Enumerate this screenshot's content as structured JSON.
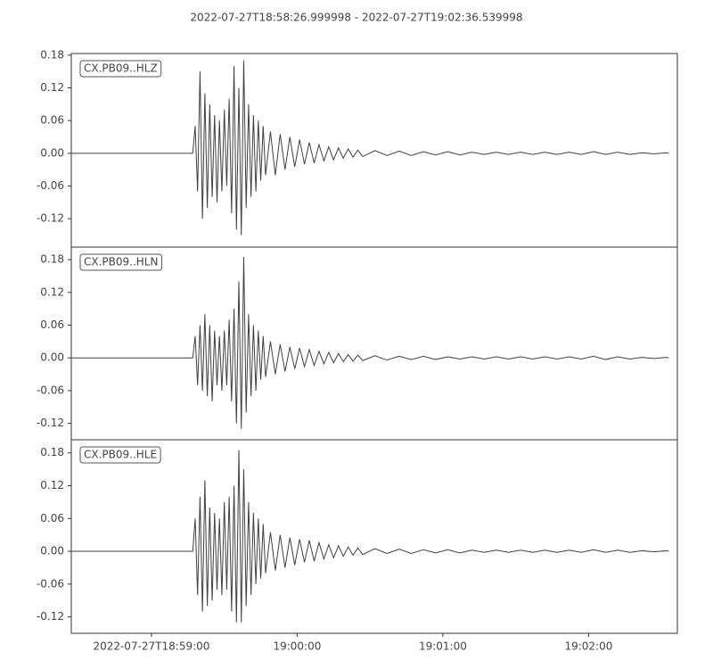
{
  "chart_data": {
    "type": "line",
    "title": "2022-07-27T18:58:26.999998  -  2022-07-27T19:02:36.539998",
    "x": [
      67107,
      67157,
      67158,
      67159,
      67160,
      67161,
      67162,
      67163,
      67164,
      67165,
      67166,
      67167,
      67168,
      67169,
      67170,
      67171,
      67172,
      67173,
      67174,
      67175,
      67176,
      67177,
      67178,
      67179,
      67180,
      67181,
      67182,
      67183,
      67184,
      67185,
      67186,
      67187,
      67189,
      67191,
      67193,
      67195,
      67197,
      67199,
      67201,
      67203,
      67205,
      67207,
      67209,
      67211,
      67213,
      67215,
      67217,
      67219,
      67221,
      67223,
      67225,
      67227,
      67232,
      67237,
      67242,
      67247,
      67252,
      67257,
      67262,
      67267,
      67272,
      67277,
      67282,
      67287,
      67292,
      67297,
      67302,
      67307,
      67312,
      67317,
      67322,
      67327,
      67332,
      67337,
      67342,
      67347,
      67352,
      67353
    ],
    "xlim": [
      67107.0,
      67356.54
    ],
    "xticks": [
      {
        "value": 67140,
        "label": "2022-07-27T18:59:00"
      },
      {
        "value": 67200,
        "label": "19:00:00"
      },
      {
        "value": 67260,
        "label": "19:01:00"
      },
      {
        "value": 67320,
        "label": "19:02:00"
      }
    ],
    "panels": [
      {
        "label": "CX.PB09..HLZ",
        "color": "#404040",
        "ylim": [
          -0.172,
          0.183
        ],
        "yticks": [
          -0.12,
          -0.06,
          {
            "value": 0,
            "label": "0.00"
          },
          0.06,
          0.12,
          0.18
        ],
        "values": [
          0,
          0,
          0.05,
          -0.07,
          0.15,
          -0.12,
          0.11,
          -0.1,
          0.09,
          -0.08,
          0.07,
          -0.09,
          0.06,
          -0.07,
          0.08,
          -0.06,
          0.1,
          -0.11,
          0.16,
          -0.14,
          0.12,
          -0.15,
          0.17,
          -0.1,
          0.09,
          -0.08,
          0.07,
          -0.07,
          0.06,
          -0.05,
          0.05,
          -0.04,
          0.04,
          -0.04,
          0.035,
          -0.03,
          0.03,
          -0.025,
          0.025,
          -0.02,
          0.02,
          -0.018,
          0.016,
          -0.014,
          0.012,
          -0.012,
          0.01,
          -0.009,
          0.008,
          -0.007,
          0.006,
          -0.006,
          0.005,
          -0.004,
          0.004,
          -0.004,
          0.003,
          -0.003,
          0.003,
          -0.003,
          0.002,
          -0.002,
          0.002,
          -0.002,
          0.002,
          -0.002,
          0.002,
          -0.002,
          0.002,
          -0.002,
          0.003,
          -0.002,
          0.002,
          -0.002,
          0.001,
          -0.001,
          0.001,
          0
        ]
      },
      {
        "label": "CX.PB09..HLN",
        "color": "#404040",
        "ylim": [
          -0.15,
          0.203
        ],
        "yticks": [
          -0.12,
          -0.06,
          {
            "value": 0,
            "label": "0.00"
          },
          0.06,
          0.12,
          0.18
        ],
        "values": [
          0,
          0,
          0.04,
          -0.05,
          0.06,
          -0.06,
          0.08,
          -0.07,
          0.06,
          -0.08,
          0.05,
          -0.05,
          0.04,
          -0.06,
          0.05,
          -0.05,
          0.07,
          -0.08,
          0.09,
          -0.12,
          0.14,
          -0.13,
          0.185,
          -0.1,
          0.08,
          -0.07,
          0.06,
          -0.06,
          0.05,
          -0.04,
          0.04,
          -0.035,
          0.03,
          -0.03,
          0.025,
          -0.025,
          0.02,
          -0.02,
          0.018,
          -0.016,
          0.015,
          -0.014,
          0.012,
          -0.011,
          0.01,
          -0.009,
          0.008,
          -0.007,
          0.006,
          -0.006,
          0.005,
          -0.005,
          0.004,
          -0.004,
          0.003,
          -0.003,
          0.003,
          -0.003,
          0.002,
          -0.002,
          0.002,
          -0.002,
          0.002,
          -0.002,
          0.002,
          -0.002,
          0.002,
          -0.002,
          0.002,
          -0.002,
          0.003,
          -0.003,
          0.002,
          -0.002,
          0.001,
          -0.001,
          0.001,
          0
        ]
      },
      {
        "label": "CX.PB09..HLE",
        "color": "#404040",
        "ylim": [
          -0.15,
          0.204
        ],
        "yticks": [
          -0.12,
          -0.06,
          {
            "value": 0,
            "label": "0.00"
          },
          0.06,
          0.12,
          0.18
        ],
        "values": [
          0,
          0,
          0.06,
          -0.08,
          0.1,
          -0.11,
          0.13,
          -0.1,
          0.08,
          -0.09,
          0.07,
          -0.07,
          0.06,
          -0.08,
          0.09,
          -0.07,
          0.1,
          -0.11,
          0.12,
          -0.13,
          0.185,
          -0.13,
          0.15,
          -0.1,
          0.09,
          -0.08,
          0.07,
          -0.06,
          0.06,
          -0.05,
          0.05,
          -0.04,
          0.035,
          -0.035,
          0.03,
          -0.03,
          0.025,
          -0.025,
          0.022,
          -0.02,
          0.02,
          -0.018,
          0.016,
          -0.014,
          0.012,
          -0.012,
          0.01,
          -0.009,
          0.008,
          -0.007,
          0.006,
          -0.006,
          0.005,
          -0.004,
          0.004,
          -0.004,
          0.003,
          -0.003,
          0.003,
          -0.003,
          0.002,
          -0.002,
          0.002,
          -0.002,
          0.002,
          -0.002,
          0.002,
          -0.002,
          0.002,
          -0.002,
          0.003,
          -0.002,
          0.002,
          -0.002,
          0.001,
          -0.001,
          0.001,
          0
        ]
      }
    ]
  }
}
